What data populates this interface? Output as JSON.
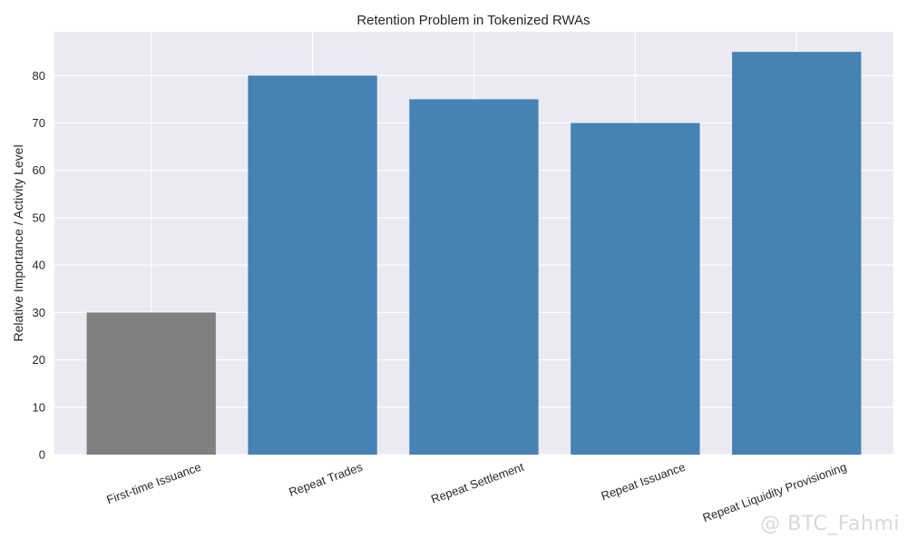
{
  "chart_data": {
    "type": "bar",
    "title": "Retention Problem in Tokenized RWAs",
    "xlabel": "",
    "ylabel": "Relative Importance / Activity Level",
    "categories": [
      "First-time Issuance",
      "Repeat Trades",
      "Repeat Settlement",
      "Repeat Issuance",
      "Repeat Liquidity Provisioning"
    ],
    "values": [
      30,
      80,
      75,
      70,
      85
    ],
    "bar_colors": [
      "#808080",
      "#4682b4",
      "#4682b4",
      "#4682b4",
      "#4682b4"
    ],
    "ylim": [
      0,
      89.25
    ],
    "yticks": [
      0,
      10,
      20,
      30,
      40,
      50,
      60,
      70,
      80
    ],
    "grid": true,
    "background": "#eaeaf2"
  },
  "watermark": "@ BTC_Fahmi"
}
